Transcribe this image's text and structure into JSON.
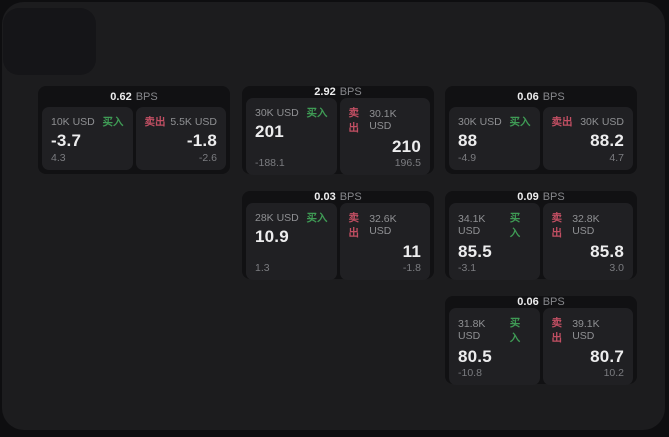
{
  "labels": {
    "buy": "买入",
    "sell": "卖出",
    "bps_unit": "BPS"
  },
  "colors": {
    "page_bg": "#0e0e10",
    "window_bg": "#1c1c1e",
    "corner_panel_bg": "#151518",
    "card_bg": "#111113",
    "panel_bg": "#202023",
    "buy_green": "#3f9b55",
    "sell_red": "#c24f63",
    "text_primary": "#ededee",
    "text_secondary": "#8f9093",
    "text_tertiary": "#7b7c80",
    "text_unit": "#87888c"
  },
  "cards": [
    {
      "row": 0,
      "col": 0,
      "bps": "0.62",
      "buy": {
        "amount": "10K USD",
        "value": "-3.7",
        "sub": "4.3"
      },
      "sell": {
        "amount": "5.5K USD",
        "value": "-1.8",
        "sub": "-2.6"
      }
    },
    {
      "row": 0,
      "col": 1,
      "bps": "2.92",
      "buy": {
        "amount": "30K USD",
        "value": "201",
        "sub": "-188.1"
      },
      "sell": {
        "amount": "30.1K USD",
        "value": "210",
        "sub": "196.5"
      }
    },
    {
      "row": 0,
      "col": 2,
      "bps": "0.06",
      "buy": {
        "amount": "30K USD",
        "value": "88",
        "sub": "-4.9"
      },
      "sell": {
        "amount": "30K USD",
        "value": "88.2",
        "sub": "4.7"
      }
    },
    {
      "row": 1,
      "col": 1,
      "bps": "0.03",
      "buy": {
        "amount": "28K USD",
        "value": "10.9",
        "sub": "1.3"
      },
      "sell": {
        "amount": "32.6K USD",
        "value": "11",
        "sub": "-1.8"
      }
    },
    {
      "row": 1,
      "col": 2,
      "bps": "0.09",
      "buy": {
        "amount": "34.1K USD",
        "value": "85.5",
        "sub": "-3.1"
      },
      "sell": {
        "amount": "32.8K USD",
        "value": "85.8",
        "sub": "3.0"
      }
    },
    {
      "row": 2,
      "col": 2,
      "bps": "0.06",
      "buy": {
        "amount": "31.8K USD",
        "value": "80.5",
        "sub": "-10.8"
      },
      "sell": {
        "amount": "39.1K USD",
        "value": "80.7",
        "sub": "10.2"
      }
    }
  ]
}
